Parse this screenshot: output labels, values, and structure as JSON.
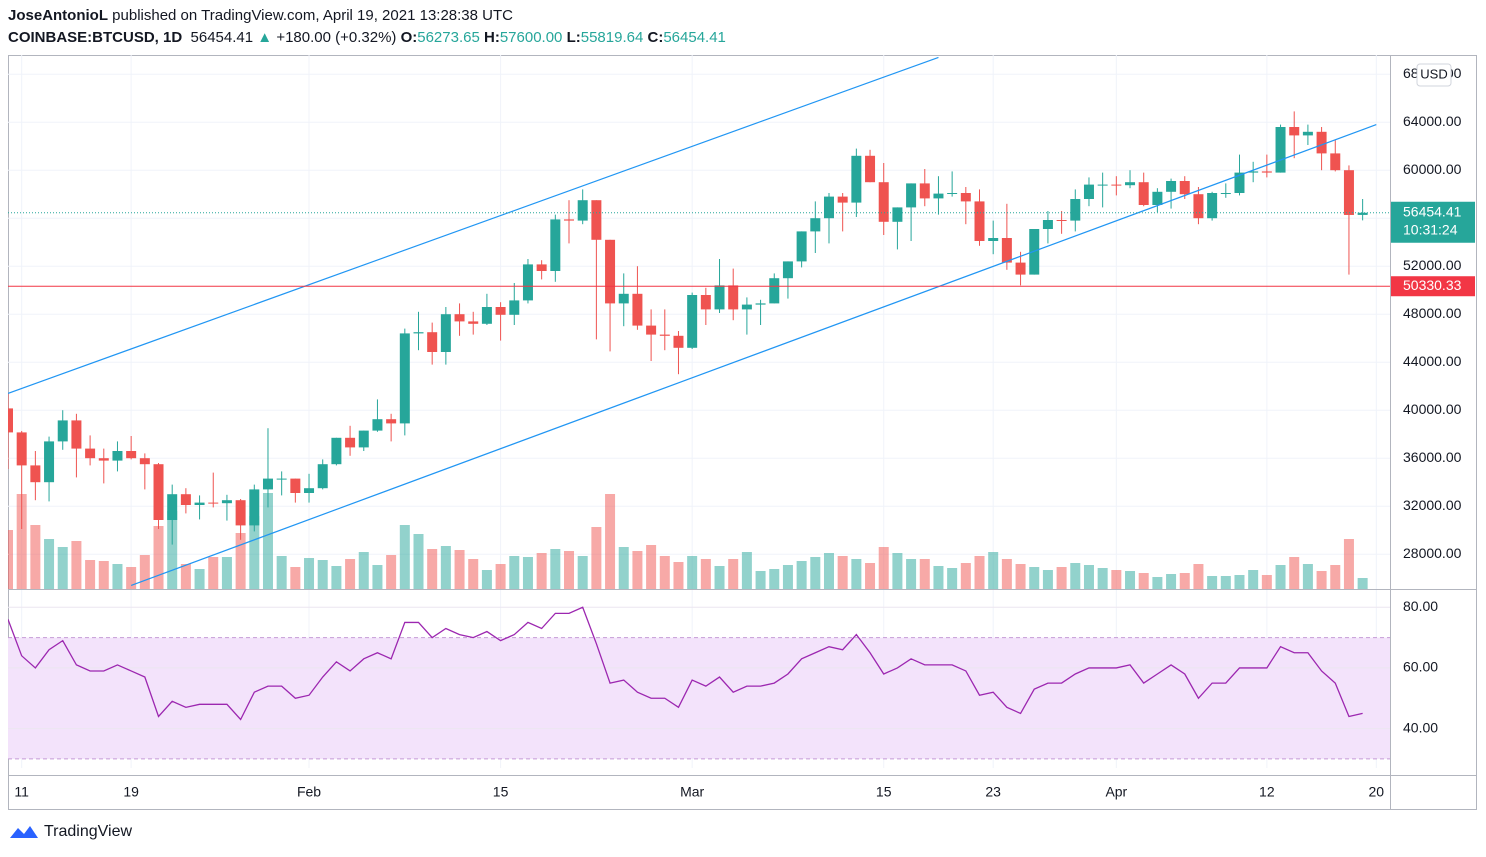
{
  "header": {
    "publisher": "JoseAntonioL",
    "published": "published on TradingView.com, April 19, 2021 13:28:38 UTC",
    "symbol": "COINBASE:BTCUSD, 1D",
    "last": "56454.41",
    "arrow": "▲",
    "change": "+180.00 (+0.32%)",
    "o_label": "O:",
    "open": "56273.65",
    "h_label": "H:",
    "high": "57600.00",
    "l_label": "L:",
    "low": "55819.64",
    "c_label": "C:",
    "close": "56454.41"
  },
  "chart_data": {
    "type": "candlestick",
    "x": [
      "2021-01-10",
      "2021-01-11",
      "2021-01-12",
      "2021-01-13",
      "2021-01-14",
      "2021-01-15",
      "2021-01-16",
      "2021-01-17",
      "2021-01-18",
      "2021-01-19",
      "2021-01-20",
      "2021-01-21",
      "2021-01-22",
      "2021-01-23",
      "2021-01-24",
      "2021-01-25",
      "2021-01-26",
      "2021-01-27",
      "2021-01-28",
      "2021-01-29",
      "2021-01-30",
      "2021-01-31",
      "2021-02-01",
      "2021-02-02",
      "2021-02-03",
      "2021-02-04",
      "2021-02-05",
      "2021-02-06",
      "2021-02-07",
      "2021-02-08",
      "2021-02-09",
      "2021-02-10",
      "2021-02-11",
      "2021-02-12",
      "2021-02-13",
      "2021-02-14",
      "2021-02-15",
      "2021-02-16",
      "2021-02-17",
      "2021-02-18",
      "2021-02-19",
      "2021-02-20",
      "2021-02-21",
      "2021-02-22",
      "2021-02-23",
      "2021-02-24",
      "2021-02-25",
      "2021-02-26",
      "2021-02-27",
      "2021-02-28",
      "2021-03-01",
      "2021-03-02",
      "2021-03-03",
      "2021-03-04",
      "2021-03-05",
      "2021-03-06",
      "2021-03-07",
      "2021-03-08",
      "2021-03-09",
      "2021-03-10",
      "2021-03-11",
      "2021-03-12",
      "2021-03-13",
      "2021-03-14",
      "2021-03-15",
      "2021-03-16",
      "2021-03-17",
      "2021-03-18",
      "2021-03-19",
      "2021-03-20",
      "2021-03-21",
      "2021-03-22",
      "2021-03-23",
      "2021-03-24",
      "2021-03-25",
      "2021-03-26",
      "2021-03-27",
      "2021-03-28",
      "2021-03-29",
      "2021-03-30",
      "2021-03-31",
      "2021-04-01",
      "2021-04-02",
      "2021-04-03",
      "2021-04-04",
      "2021-04-05",
      "2021-04-06",
      "2021-04-07",
      "2021-04-08",
      "2021-04-09",
      "2021-04-10",
      "2021-04-11",
      "2021-04-12",
      "2021-04-13",
      "2021-04-14",
      "2021-04-15",
      "2021-04-16",
      "2021-04-17",
      "2021-04-18",
      "2021-04-19"
    ],
    "open": [
      40150,
      38150,
      35400,
      34000,
      37400,
      39150,
      36800,
      36000,
      35800,
      36600,
      36000,
      35500,
      30850,
      33000,
      32100,
      32300,
      32250,
      32500,
      30400,
      33400,
      34300,
      34300,
      33100,
      33500,
      35500,
      37700,
      36900,
      38300,
      39250,
      38900,
      46400,
      46500,
      44850,
      48000,
      47400,
      47200,
      48600,
      47950,
      49150,
      52150,
      51600,
      55900,
      55800,
      57500,
      54200,
      48900,
      49700,
      47050,
      46300,
      46200,
      45200,
      49600,
      48400,
      50400,
      48400,
      48800,
      48900,
      51000,
      52400,
      54900,
      56000,
      57800,
      57300,
      61200,
      59000,
      55700,
      56900,
      58900,
      57650,
      58050,
      58100,
      57400,
      54100,
      54350,
      52300,
      51300,
      55100,
      55850,
      55800,
      57600,
      58800,
      58800,
      58750,
      59000,
      57100,
      58200,
      59100,
      58000,
      56000,
      58100,
      58100,
      59800,
      59900,
      59800,
      63600,
      62900,
      63200,
      61400,
      60000,
      56273.65
    ],
    "high": [
      41400,
      38270,
      36600,
      37800,
      40000,
      39700,
      37900,
      36800,
      37400,
      37850,
      36400,
      35600,
      33800,
      33500,
      32900,
      34800,
      32950,
      32600,
      33800,
      38500,
      34900,
      34300,
      34700,
      35900,
      37700,
      38700,
      38300,
      40900,
      39700,
      46800,
      48200,
      47300,
      48600,
      48900,
      48200,
      49700,
      49000,
      50600,
      52600,
      52500,
      56300,
      57500,
      58400,
      57500,
      54200,
      51400,
      52000,
      48400,
      48400,
      46600,
      49800,
      50200,
      52600,
      51800,
      49400,
      49200,
      51400,
      52400,
      54900,
      57400,
      58100,
      58100,
      61800,
      61700,
      60600,
      56900,
      58900,
      60100,
      59500,
      59900,
      58600,
      58400,
      55800,
      57200,
      53200,
      55100,
      56600,
      56600,
      58400,
      59400,
      59800,
      59500,
      60000,
      59800,
      58500,
      59300,
      59500,
      58600,
      58200,
      58900,
      61300,
      60700,
      61300,
      63800,
      64900,
      63800,
      63600,
      62500,
      60400,
      57600
    ],
    "low": [
      35100,
      30100,
      32500,
      32400,
      36700,
      34400,
      35400,
      33900,
      34900,
      35900,
      33400,
      30100,
      28800,
      31400,
      30900,
      31900,
      30800,
      29200,
      29900,
      31900,
      32900,
      32300,
      32300,
      33400,
      35400,
      36200,
      36600,
      38200,
      37400,
      37900,
      45000,
      43800,
      43800,
      46200,
      46300,
      47100,
      45800,
      47100,
      48900,
      50900,
      50700,
      53900,
      55500,
      45900,
      44900,
      47000,
      46700,
      44100,
      45000,
      43000,
      45100,
      47100,
      48100,
      47500,
      46300,
      47100,
      48900,
      49300,
      51900,
      53100,
      53900,
      54900,
      56100,
      59000,
      54600,
      53400,
      54100,
      57000,
      56300,
      57800,
      55500,
      53700,
      53000,
      51700,
      50400,
      51300,
      53900,
      54700,
      54900,
      57000,
      56900,
      57900,
      58500,
      57000,
      56500,
      56800,
      57600,
      55500,
      55800,
      57700,
      57900,
      59000,
      59400,
      59800,
      61000,
      62100,
      60000,
      59900,
      51300,
      55819.64
    ],
    "close": [
      38150,
      35400,
      34000,
      37400,
      39150,
      36800,
      36000,
      35800,
      36600,
      36000,
      35500,
      30850,
      33000,
      32100,
      32300,
      32250,
      32500,
      30400,
      33400,
      34300,
      34300,
      33100,
      33500,
      35500,
      37700,
      36900,
      38300,
      39250,
      38900,
      46400,
      46500,
      44850,
      48000,
      47400,
      47200,
      48600,
      47950,
      49150,
      52150,
      51600,
      55900,
      55800,
      57500,
      54200,
      48900,
      49700,
      47050,
      46300,
      46200,
      45200,
      49600,
      48400,
      50400,
      48400,
      48800,
      48900,
      51000,
      52400,
      54900,
      56000,
      57800,
      57300,
      61200,
      59000,
      55700,
      56900,
      58900,
      57650,
      58050,
      58100,
      57400,
      54100,
      54350,
      52300,
      51300,
      55100,
      55850,
      55800,
      57600,
      58800,
      58800,
      58750,
      59000,
      57100,
      58200,
      59100,
      58000,
      56000,
      58100,
      58100,
      59800,
      59900,
      59800,
      63600,
      62900,
      63200,
      61400,
      60000,
      56270,
      56454.41
    ],
    "volume": [
      59,
      95,
      64,
      50,
      42,
      48,
      29,
      28,
      25,
      22,
      34,
      63,
      78,
      25,
      20,
      32,
      32,
      56,
      73,
      96,
      33,
      22,
      31,
      29,
      23,
      30,
      37,
      24,
      34,
      64,
      55,
      40,
      43,
      39,
      30,
      19,
      25,
      33,
      32,
      36,
      40,
      38,
      33,
      62,
      95,
      42,
      38,
      44,
      33,
      27,
      33,
      30,
      23,
      30,
      37,
      18,
      20,
      24,
      28,
      32,
      36,
      33,
      30,
      26,
      42,
      36,
      30,
      30,
      23,
      21,
      26,
      33,
      37,
      30,
      25,
      22,
      19,
      22,
      26,
      24,
      21,
      19,
      18,
      16,
      12,
      15,
      16,
      25,
      13,
      13,
      14,
      19,
      14,
      24,
      32,
      25,
      18,
      24,
      50,
      11
    ],
    "up_color": "#26a69a",
    "down_color": "#ef5350",
    "xlim": [
      "2021-01-10",
      "2021-04-21"
    ],
    "xticks": [
      {
        "value": "2021-01-11",
        "label": "11"
      },
      {
        "value": "2021-01-19",
        "label": "19"
      },
      {
        "value": "2021-02-01",
        "label": "Feb"
      },
      {
        "value": "2021-02-15",
        "label": "15"
      },
      {
        "value": "2021-03-01",
        "label": "Mar"
      },
      {
        "value": "2021-03-15",
        "label": "15"
      },
      {
        "value": "2021-03-23",
        "label": "23"
      },
      {
        "value": "2021-04-01",
        "label": "Apr"
      },
      {
        "value": "2021-04-12",
        "label": "12"
      },
      {
        "value": "2021-04-20",
        "label": "20"
      }
    ],
    "ylim": [
      25100,
      69600
    ],
    "yticks": [
      {
        "value": 28000,
        "label": "28000.00"
      },
      {
        "value": 32000,
        "label": "32000.00"
      },
      {
        "value": 36000,
        "label": "36000.00"
      },
      {
        "value": 40000,
        "label": "40000.00"
      },
      {
        "value": 44000,
        "label": "44000.00"
      },
      {
        "value": 48000,
        "label": "48000.00"
      },
      {
        "value": 52000,
        "label": "52000.00"
      },
      {
        "value": 56000,
        "label": "56000.00"
      },
      {
        "value": 60000,
        "label": "60000.00"
      },
      {
        "value": 64000,
        "label": "64000.00"
      },
      {
        "value": 68000,
        "label": "68000.00"
      }
    ],
    "currency": "USD",
    "grid": true,
    "last_price": {
      "value": 56454.41,
      "countdown": "10:31:24",
      "color": "#26a69a"
    },
    "horizontal_line": {
      "value": 50330.33,
      "color": "#f23645"
    },
    "trendlines": [
      {
        "color": "#2196f3",
        "points": [
          [
            "2021-01-10",
            41400
          ],
          [
            "2021-03-19",
            69400
          ]
        ]
      },
      {
        "color": "#2196f3",
        "points": [
          [
            "2021-01-19",
            25400
          ],
          [
            "2021-04-20",
            63800
          ]
        ]
      }
    ],
    "rsi": {
      "values": [
        76,
        64,
        60,
        66,
        69,
        61,
        59,
        59,
        61,
        59,
        57,
        44,
        49,
        47,
        48,
        48,
        48,
        43,
        52,
        54,
        54,
        50,
        51,
        57,
        62,
        59,
        63,
        65,
        63,
        75,
        75,
        70,
        73,
        71,
        70,
        72,
        69,
        71,
        75,
        73,
        78,
        78,
        80,
        68,
        55,
        56,
        52,
        50,
        50,
        47,
        56,
        54,
        57,
        52,
        54,
        54,
        55,
        58,
        63,
        65,
        67,
        66,
        71,
        65,
        58,
        60,
        63,
        61,
        61,
        61,
        59,
        51,
        52,
        47,
        45,
        53,
        55,
        55,
        58,
        60,
        60,
        60,
        61,
        55,
        58,
        61,
        58,
        50,
        55,
        55,
        60,
        60,
        60,
        67,
        65,
        65,
        59,
        55,
        44,
        45
      ],
      "ylim": [
        27,
        85.7
      ],
      "yticks": [
        {
          "value": 40,
          "label": "40.00"
        },
        {
          "value": 60,
          "label": "60.00"
        },
        {
          "value": 80,
          "label": "80.00"
        }
      ],
      "bands": [
        30,
        70
      ],
      "color": "#9c27b0",
      "band_color": "#f3e3fb"
    }
  },
  "footer": {
    "brand": "TradingView"
  }
}
